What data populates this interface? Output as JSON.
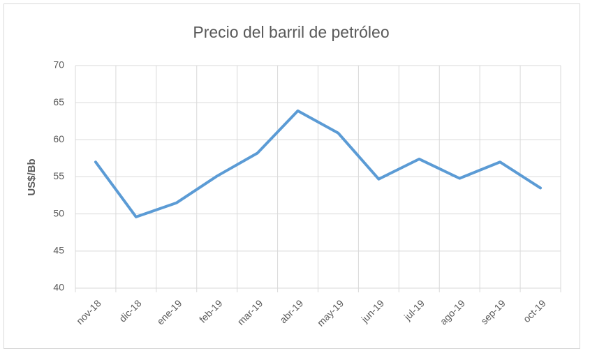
{
  "chart_data": {
    "type": "line",
    "title": "Precio del barril de petróleo",
    "y_label": "US$/Bb",
    "categories": [
      "nov-18",
      "dic-18",
      "ene-19",
      "feb-19",
      "mar-19",
      "abr-19",
      "may-19",
      "jun-19",
      "jul-19",
      "ago-19",
      "sep-19",
      "oct-19"
    ],
    "values": [
      57.0,
      49.6,
      51.5,
      55.1,
      58.2,
      63.9,
      60.9,
      54.7,
      57.4,
      54.8,
      57.0,
      53.5
    ],
    "color": "#5b9bd5",
    "ylim": [
      40,
      70
    ],
    "yticks": [
      40,
      45,
      50,
      55,
      60,
      65,
      70
    ],
    "grid": true
  }
}
